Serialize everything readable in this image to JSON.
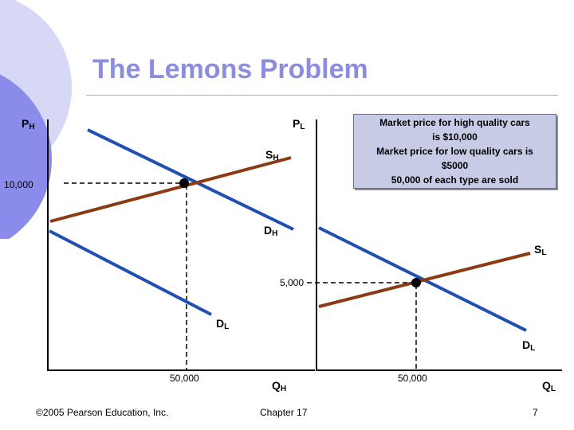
{
  "slide": {
    "title": "The Lemons Problem",
    "page_number": "7",
    "footer_left": "©2005 Pearson Education, Inc.",
    "footer_center": "Chapter 17",
    "colors": {
      "title": "#8d8ddf",
      "demand": "#1f4eb4",
      "supply": "#8c3a14",
      "note_bg": "#c7cbe5",
      "circle_outer": "#c5c5f0",
      "circle_inner": "#7a7ae8"
    }
  },
  "note": {
    "lines": [
      "Market price for high quality cars",
      "is $10,000",
      "Market price for low quality cars is",
      "$5000",
      "50,000 of each type are sold"
    ]
  },
  "left_chart": {
    "y_axis": {
      "main": "P",
      "sub": "H"
    },
    "x_axis": {
      "main": "Q",
      "sub": "H"
    },
    "price_label": "10,000",
    "quantity_label": "50,000",
    "pl_label": {
      "main": "P",
      "sub": "L"
    },
    "curves": {
      "supply": {
        "main": "S",
        "sub": "H"
      },
      "demand": {
        "main": "D",
        "sub": "H"
      },
      "low_demand": {
        "main": "D",
        "sub": "L"
      }
    }
  },
  "right_chart": {
    "x_axis": {
      "main": "Q",
      "sub": "L"
    },
    "price_label": "5,000",
    "quantity_label": "50,000",
    "curves": {
      "supply": {
        "main": "S",
        "sub": "L"
      },
      "demand": {
        "main": "D",
        "sub": "L"
      }
    }
  }
}
